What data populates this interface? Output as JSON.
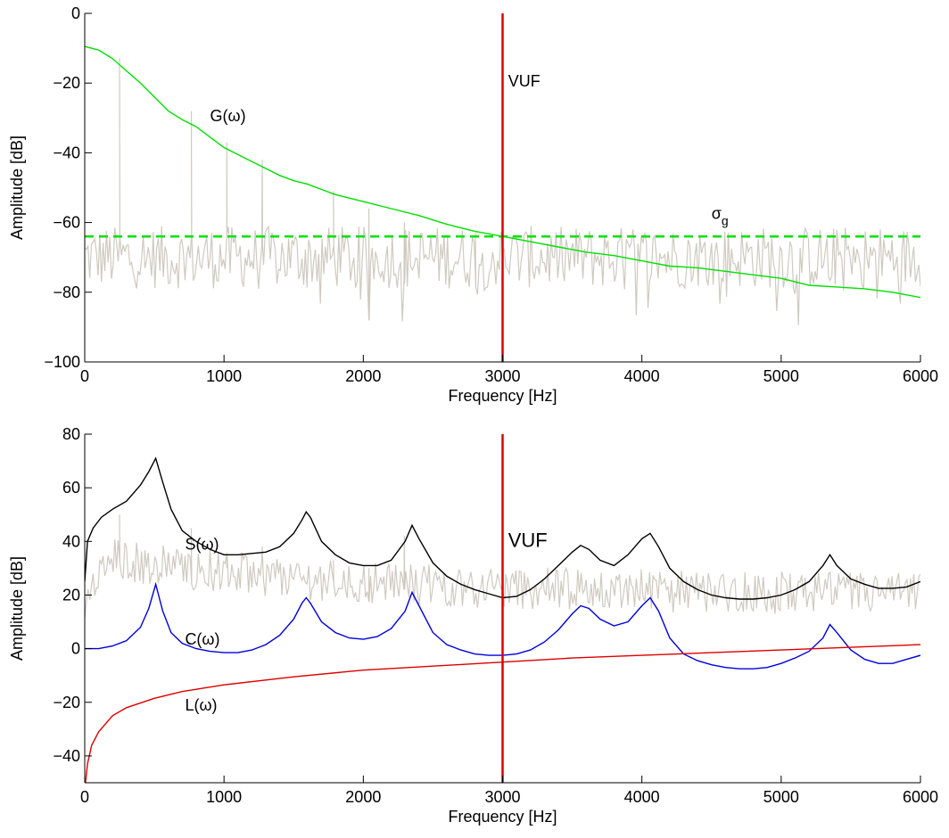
{
  "chart_data": [
    {
      "type": "line",
      "xlabel": "Frequency [Hz]",
      "ylabel": "Amplitude [dB]",
      "xlim": [
        0,
        6000
      ],
      "ylim": [
        -100,
        0
      ],
      "xticks": [
        0,
        1000,
        2000,
        3000,
        4000,
        5000,
        6000
      ],
      "yticks": [
        0,
        -20,
        -40,
        -60,
        -80,
        -100
      ],
      "grid": false,
      "series": [
        {
          "name": "G(ω)",
          "color": "#00e000",
          "style": "solid",
          "x": [
            0,
            100,
            200,
            300,
            400,
            500,
            600,
            700,
            800,
            900,
            1000,
            1100,
            1200,
            1300,
            1400,
            1500,
            1600,
            1700,
            1800,
            1900,
            2000,
            2200,
            2400,
            2600,
            2800,
            3000,
            3200,
            3400,
            3600,
            3800,
            4000,
            4200,
            4400,
            4600,
            4800,
            5000,
            5200,
            5400,
            5600,
            5800,
            6000
          ],
          "values": [
            -9.5,
            -10.5,
            -13,
            -16.5,
            -20,
            -24,
            -28,
            -30.5,
            -32.5,
            -35.5,
            -38.5,
            -40.5,
            -42.5,
            -44.5,
            -46.5,
            -48,
            -49,
            -50.5,
            -52,
            -53,
            -54,
            -56,
            -58,
            -60.5,
            -62.5,
            -64,
            -65.5,
            -67,
            -68.5,
            -69.5,
            -71,
            -72.5,
            -73,
            -74,
            -75,
            -76,
            -78,
            -78.5,
            -79,
            -80,
            -81.5
          ]
        },
        {
          "name": "σg",
          "color": "#00e000",
          "style": "dashed",
          "x": [
            0,
            6000
          ],
          "values": [
            -64,
            -64
          ]
        },
        {
          "name": "spectrum",
          "color": "#cfcac0",
          "style": "noise",
          "base": -70,
          "harmonics": [
            [
              250,
              -13
            ],
            [
              510,
              -22
            ],
            [
              765,
              -28
            ],
            [
              1020,
              -37
            ],
            [
              1275,
              -42
            ],
            [
              1530,
              -48
            ],
            [
              1785,
              -51
            ],
            [
              2040,
              -56
            ],
            [
              2295,
              -60
            ],
            [
              2550,
              -62
            ],
            [
              2805,
              -63
            ]
          ]
        }
      ],
      "annotations": [
        {
          "text": "G(ω)",
          "x": 900,
          "y": -31
        },
        {
          "text": "σ",
          "sub": "g",
          "x": 4500,
          "y": -59
        },
        {
          "text": "VUF",
          "x": 3040,
          "y": -21
        }
      ],
      "vline": {
        "x": 3000,
        "color": "#dd0000"
      }
    },
    {
      "type": "line",
      "xlabel": "Frequency [Hz]",
      "ylabel": "Amplitude [dB]",
      "xlim": [
        0,
        6000
      ],
      "ylim": [
        -50,
        80
      ],
      "xticks": [
        0,
        1000,
        2000,
        3000,
        4000,
        5000,
        6000
      ],
      "yticks": [
        80,
        60,
        40,
        20,
        0,
        -20,
        -40
      ],
      "grid": false,
      "series": [
        {
          "name": "S(ω)",
          "color": "#000000",
          "style": "solid",
          "x": [
            0,
            20,
            60,
            120,
            200,
            300,
            400,
            460,
            510,
            560,
            620,
            700,
            800,
            900,
            1000,
            1100,
            1200,
            1300,
            1400,
            1500,
            1560,
            1590,
            1620,
            1700,
            1800,
            1900,
            2000,
            2100,
            2200,
            2300,
            2350,
            2400,
            2500,
            2600,
            2700,
            2800,
            2900,
            3000,
            3100,
            3200,
            3300,
            3400,
            3500,
            3560,
            3620,
            3700,
            3800,
            3900,
            4000,
            4060,
            4120,
            4200,
            4300,
            4400,
            4500,
            4600,
            4700,
            4800,
            4900,
            5000,
            5100,
            5200,
            5300,
            5350,
            5400,
            5500,
            5600,
            5700,
            5800,
            5900,
            6000
          ],
          "values": [
            25,
            40,
            45,
            49,
            52,
            55,
            61,
            66,
            71,
            62,
            52,
            44,
            40,
            37,
            35,
            35,
            35.5,
            36,
            38,
            43,
            48,
            51,
            49,
            40,
            35,
            32,
            31,
            31,
            33,
            40,
            46,
            41,
            32,
            27,
            24,
            22,
            20.5,
            19,
            19.5,
            22,
            26,
            31,
            36,
            38.5,
            37,
            33,
            31,
            35,
            41,
            43,
            38,
            30,
            25,
            22,
            20,
            19,
            18.5,
            18.5,
            19,
            20,
            22,
            25,
            31,
            35,
            31,
            26,
            24,
            22.5,
            22.5,
            23,
            25
          ]
        },
        {
          "name": "C(ω)",
          "color": "#0000dd",
          "style": "solid",
          "x": [
            0,
            100,
            200,
            300,
            400,
            460,
            510,
            560,
            620,
            700,
            800,
            900,
            1000,
            1100,
            1200,
            1300,
            1400,
            1500,
            1560,
            1590,
            1620,
            1700,
            1800,
            1900,
            2000,
            2100,
            2200,
            2300,
            2350,
            2400,
            2500,
            2600,
            2700,
            2800,
            2900,
            3000,
            3100,
            3200,
            3300,
            3400,
            3500,
            3560,
            3620,
            3700,
            3800,
            3900,
            4000,
            4060,
            4120,
            4200,
            4300,
            4400,
            4500,
            4600,
            4700,
            4800,
            4900,
            5000,
            5100,
            5200,
            5300,
            5350,
            5400,
            5500,
            5600,
            5700,
            5800,
            5900,
            6000
          ],
          "values": [
            0,
            0,
            1,
            3,
            8,
            15,
            24,
            14,
            6,
            2,
            0,
            -1,
            -1.5,
            -1.5,
            -0.5,
            1.5,
            5,
            11,
            17,
            19,
            17,
            10,
            6,
            4,
            3.5,
            4.5,
            7.5,
            14,
            21,
            16,
            6,
            1.5,
            -0.5,
            -2,
            -2.5,
            -2.5,
            -2,
            -0.5,
            2.5,
            7,
            13,
            16,
            15,
            11,
            8.5,
            10,
            16,
            19,
            14,
            4,
            -2,
            -4.5,
            -6,
            -7,
            -7.5,
            -7.5,
            -7,
            -5.5,
            -3.5,
            -1,
            4,
            9,
            6,
            -0.5,
            -4,
            -5.5,
            -5.5,
            -4,
            -2.5
          ]
        },
        {
          "name": "L(ω)",
          "color": "#dd0000",
          "style": "solid",
          "x": [
            5,
            20,
            50,
            100,
            200,
            300,
            500,
            700,
            1000,
            1500,
            2000,
            2500,
            3000,
            3500,
            4000,
            4500,
            5000,
            5500,
            6000
          ],
          "values": [
            -50,
            -43,
            -36,
            -31,
            -25,
            -22,
            -18.5,
            -16,
            -13.5,
            -10.5,
            -8,
            -6.5,
            -5,
            -3.5,
            -2.5,
            -1.5,
            -0.5,
            0.5,
            1.5
          ]
        },
        {
          "name": "spectrum",
          "color": "#cfcac0",
          "style": "noise",
          "base": 20,
          "harmonics": [
            [
              250,
              50
            ],
            [
              510,
              70
            ],
            [
              765,
              45
            ],
            [
              1020,
              30
            ],
            [
              1275,
              38
            ],
            [
              1530,
              42
            ],
            [
              1785,
              33
            ],
            [
              2040,
              30
            ],
            [
              2295,
              42
            ],
            [
              2550,
              30
            ]
          ]
        }
      ],
      "annotations": [
        {
          "text": "S(ω)",
          "x": 720,
          "y": 37
        },
        {
          "text": "C(ω)",
          "x": 720,
          "y": 1.5
        },
        {
          "text": "L(ω)",
          "x": 720,
          "y": -23
        },
        {
          "text": "VUF",
          "x": 3040,
          "y": 38
        }
      ],
      "vline": {
        "x": 3000,
        "color": "#dd0000"
      }
    }
  ]
}
